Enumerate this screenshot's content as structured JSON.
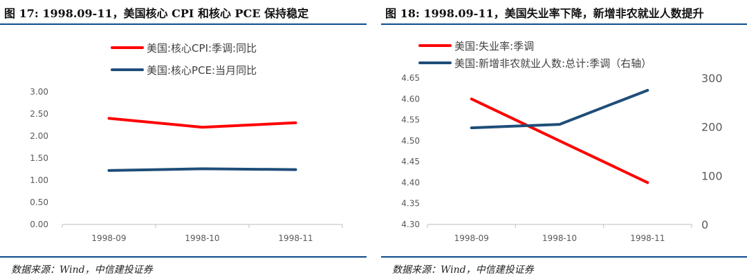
{
  "panels": [
    {
      "title": "图 17: 1998.09-11，美国核心 CPI 和核心 PCE 保持稳定",
      "source": "数据来源：Wind，中信建投证券"
    },
    {
      "title": "图 18: 1998.09-11，美国失业率下降，新增非农就业人数提升",
      "source": "数据来源：Wind，中信建投证券"
    }
  ],
  "chart_data": [
    {
      "type": "line",
      "categories": [
        "1998-09",
        "1998-10",
        "1998-11"
      ],
      "series": [
        {
          "name": "美国:核心CPI:季调:同比",
          "values": [
            2.4,
            2.2,
            2.3
          ],
          "color": "#ff0000"
        },
        {
          "name": "美国:核心PCE:当月同比",
          "values": [
            1.22,
            1.26,
            1.24
          ],
          "color": "#1f4e79"
        }
      ],
      "y_ticks": [
        "3.00",
        "2.50",
        "2.00",
        "1.50",
        "1.00",
        "0.50",
        "0.00"
      ],
      "ylim": [
        0,
        3
      ],
      "legend_position": "top-left"
    },
    {
      "type": "line",
      "categories": [
        "1998-09",
        "1998-10",
        "1998-11"
      ],
      "series": [
        {
          "name": "美国:失业率:季调",
          "values": [
            4.6,
            4.5,
            4.4
          ],
          "color": "#ff0000",
          "axis": "left"
        },
        {
          "name": "美国:新增非农就业人数:总计:季调（右轴）",
          "values": [
            198,
            205,
            275
          ],
          "color": "#1f4e79",
          "axis": "right"
        }
      ],
      "y_ticks": [
        "4.65",
        "4.60",
        "4.55",
        "4.50",
        "4.45",
        "4.40",
        "4.35",
        "4.30"
      ],
      "ylim": [
        4.3,
        4.65
      ],
      "y2_ticks": [
        "300",
        "200",
        "100",
        "0"
      ],
      "y2lim": [
        0,
        300
      ],
      "legend_position": "top-left"
    }
  ]
}
